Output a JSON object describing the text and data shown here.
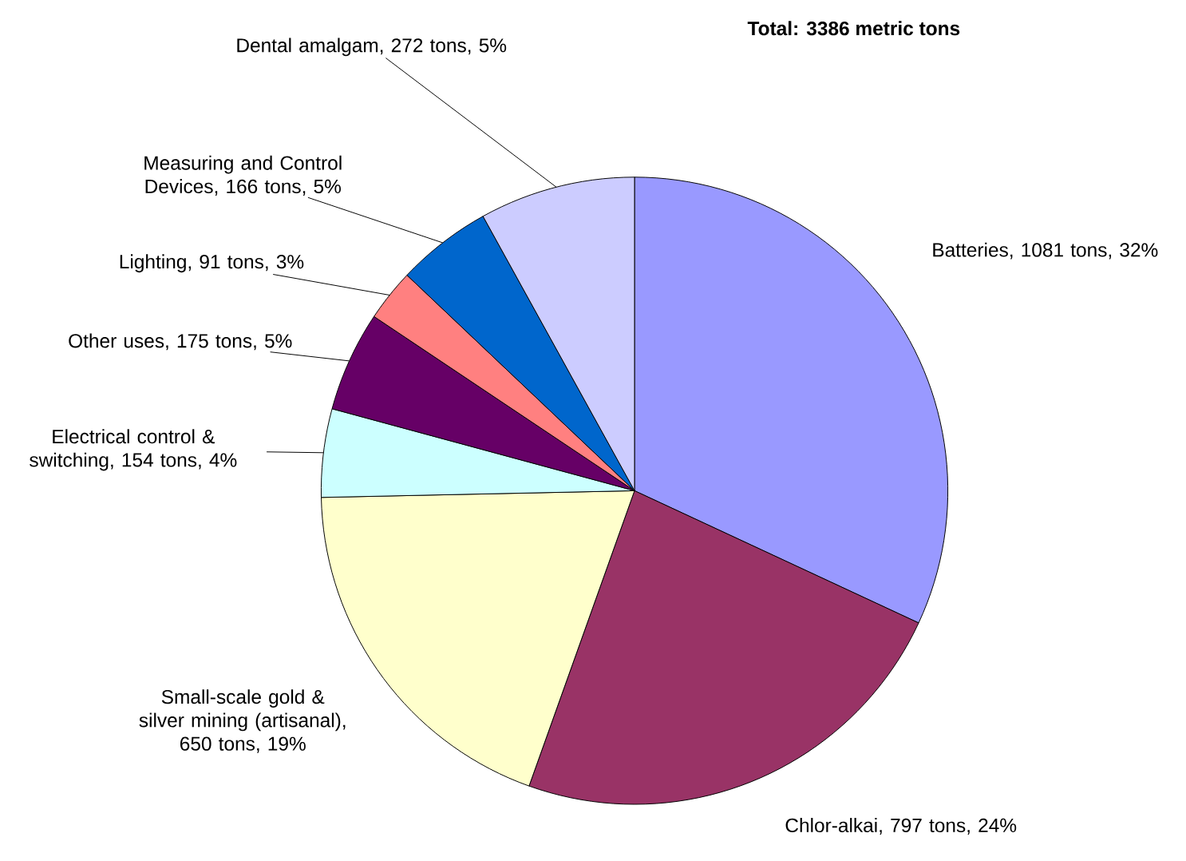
{
  "chart_data": {
    "type": "pie",
    "title": "Total: 3386 metric tons",
    "categories": [
      "Batteries, 1081 tons, 32%",
      "Chlor-alkai, 797 tons, 24%",
      "Small-scale gold & silver mining (artisanal), 650 tons, 19%",
      "Electrical control & switching, 154 tons, 4%",
      "Other uses, 175 tons, 5%",
      "Lighting, 91 tons, 3%",
      "Measuring and Control Devices, 166 tons, 5%",
      "Dental amalgam, 272 tons, 5%"
    ],
    "values": [
      1081,
      797,
      650,
      154,
      175,
      91,
      166,
      272
    ],
    "colors": [
      "#9999ff",
      "#993366",
      "#ffffcc",
      "#ccffff",
      "#660066",
      "#ff8080",
      "#0066cc",
      "#ccccff"
    ]
  }
}
